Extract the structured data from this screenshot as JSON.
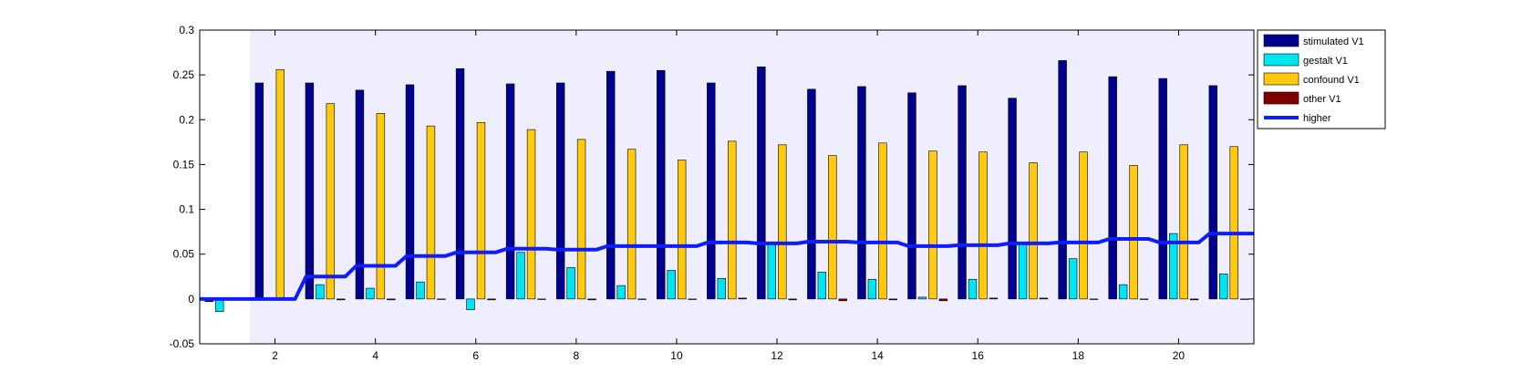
{
  "chart_data": {
    "type": "bar",
    "title": "",
    "xlabel": "",
    "ylabel": "",
    "xlim": [
      0.5,
      21.5
    ],
    "ylim": [
      -0.05,
      0.3
    ],
    "xticks": [
      2,
      4,
      6,
      8,
      10,
      12,
      14,
      16,
      18,
      20
    ],
    "yticks": [
      -0.05,
      0,
      0.05,
      0.1,
      0.15,
      0.2,
      0.25,
      0.3
    ],
    "ytick_labels": [
      "-0.05",
      "0",
      "0.05",
      "0.1",
      "0.15",
      "0.2",
      "0.25",
      "0.3"
    ],
    "shaded_region_x": [
      1.5,
      21.5
    ],
    "legend_position": "outside-right-top",
    "categories": [
      1,
      2,
      3,
      4,
      5,
      6,
      7,
      8,
      9,
      10,
      11,
      12,
      13,
      14,
      15,
      16,
      17,
      18,
      19,
      20,
      21
    ],
    "series": [
      {
        "name": "stimulated V1",
        "color": "#00008f",
        "values": [
          -0.003,
          0.241,
          0.241,
          0.233,
          0.239,
          0.257,
          0.24,
          0.241,
          0.254,
          0.255,
          0.241,
          0.259,
          0.234,
          0.237,
          0.23,
          0.238,
          0.224,
          0.266,
          0.248,
          0.246,
          0.238
        ]
      },
      {
        "name": "gestalt V1",
        "color": "#00e5f0",
        "values": [
          -0.014,
          0.0,
          0.016,
          0.012,
          0.019,
          -0.012,
          0.052,
          0.035,
          0.015,
          0.032,
          0.023,
          0.062,
          0.03,
          0.022,
          0.002,
          0.022,
          0.062,
          0.045,
          0.016,
          0.073,
          0.028
        ]
      },
      {
        "name": "confound V1",
        "color": "#ffc90e",
        "values": [
          0.0,
          0.256,
          0.218,
          0.207,
          0.193,
          0.197,
          0.189,
          0.178,
          0.167,
          0.155,
          0.176,
          0.172,
          0.16,
          0.174,
          0.165,
          0.164,
          0.152,
          0.164,
          0.149,
          0.172,
          0.17
        ]
      },
      {
        "name": "other V1",
        "color": "#800000",
        "values": [
          0.0,
          0.0,
          -0.001,
          -0.001,
          0.0,
          -0.001,
          0.0,
          -0.001,
          0.0,
          0.0,
          0.001,
          -0.001,
          -0.002,
          -0.001,
          -0.002,
          0.001,
          0.001,
          0.0,
          0.0,
          -0.001,
          0.0
        ]
      }
    ],
    "line_series": {
      "name": "higher",
      "color": "#0f1cff",
      "values": [
        0.0,
        0.0,
        0.025,
        0.037,
        0.048,
        0.052,
        0.056,
        0.055,
        0.059,
        0.059,
        0.063,
        0.062,
        0.064,
        0.063,
        0.059,
        0.06,
        0.062,
        0.063,
        0.067,
        0.063,
        0.073
      ]
    }
  }
}
